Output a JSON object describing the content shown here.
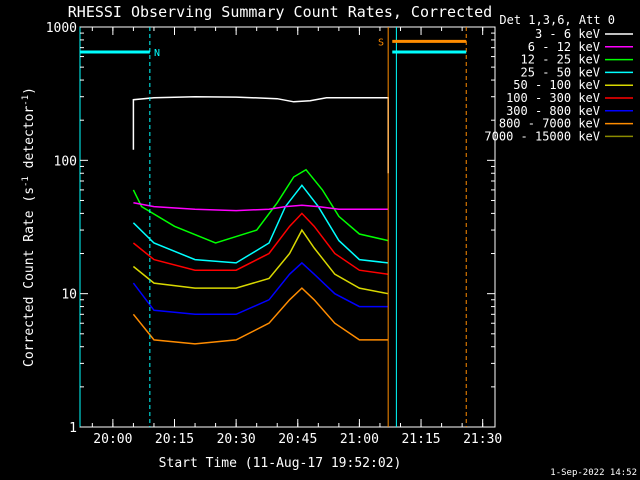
{
  "chart_data": {
    "type": "line",
    "title": "RHESSI Observing Summary Count Rates, Corrected",
    "xlabel": "Start Time (11-Aug-17 19:52:02)",
    "ylabel": "Corrected Count Rate (s⁻¹ detector⁻¹)",
    "ylabel_parts": {
      "main": "Corrected Count Rate (s",
      "exp1": "-1",
      "mid": " detector",
      "exp2": "-1",
      "end": ")"
    },
    "yscale": "log",
    "xlim": [
      "19:52",
      "21:33"
    ],
    "ylim": [
      1,
      1000
    ],
    "x_ticks": [
      "20:00",
      "20:15",
      "20:30",
      "20:45",
      "21:00",
      "21:15",
      "21:30"
    ],
    "y_ticks": [
      "1",
      "10",
      "100",
      "1000"
    ],
    "footer": "1-Sep-2022 14:52",
    "legend": {
      "placement": "right",
      "header": "Det 1,3,6, Att 0",
      "entries": [
        {
          "label": "3 - 6 keV",
          "color": "#ffffff"
        },
        {
          "label": "6 - 12 keV",
          "color": "#ff00ff"
        },
        {
          "label": "12 - 25 keV",
          "color": "#00ff00"
        },
        {
          "label": "25 - 50 keV",
          "color": "#00ffff"
        },
        {
          "label": "50 - 100 keV",
          "color": "#d8d800"
        },
        {
          "label": "100 - 300 keV",
          "color": "#ff0000"
        },
        {
          "label": "300 - 800 keV",
          "color": "#0000ff"
        },
        {
          "label": "800 - 7000 keV",
          "color": "#ff8c00"
        },
        {
          "label": "7000 - 15000 keV",
          "color": "#8b8b00"
        }
      ]
    },
    "series": [
      {
        "name": "3 - 6 keV",
        "color": "#ffffff",
        "x": [
          "20:05",
          "20:05",
          "20:10",
          "20:20",
          "20:30",
          "20:40",
          "20:44",
          "20:48",
          "20:52",
          "21:00",
          "21:07",
          "21:07"
        ],
        "y": [
          120,
          285,
          295,
          300,
          298,
          290,
          275,
          280,
          295,
          295,
          295,
          80
        ]
      },
      {
        "name": "6 - 12 keV",
        "color": "#ff00ff",
        "x": [
          "20:05",
          "20:10",
          "20:20",
          "20:30",
          "20:38",
          "20:42",
          "20:46",
          "20:50",
          "20:55",
          "21:00",
          "21:07"
        ],
        "y": [
          48,
          45,
          43,
          42,
          43,
          45,
          46,
          45,
          43,
          43,
          43
        ]
      },
      {
        "name": "12 - 25 keV",
        "color": "#00ff00",
        "x": [
          "20:05",
          "20:07",
          "20:15",
          "20:25",
          "20:35",
          "20:40",
          "20:44",
          "20:47",
          "20:51",
          "20:55",
          "21:00",
          "21:07"
        ],
        "y": [
          60,
          45,
          32,
          24,
          30,
          48,
          75,
          85,
          60,
          38,
          28,
          25
        ]
      },
      {
        "name": "25 - 50 keV",
        "color": "#00ffff",
        "x": [
          "20:05",
          "20:10",
          "20:20",
          "20:30",
          "20:38",
          "20:42",
          "20:46",
          "20:50",
          "20:55",
          "21:00",
          "21:07"
        ],
        "y": [
          34,
          24,
          18,
          17,
          24,
          45,
          65,
          45,
          25,
          18,
          17
        ]
      },
      {
        "name": "50 - 100 keV",
        "color": "#d8d800",
        "x": [
          "20:05",
          "20:10",
          "20:20",
          "20:30",
          "20:38",
          "20:43",
          "20:46",
          "20:49",
          "20:54",
          "21:00",
          "21:07"
        ],
        "y": [
          16,
          12,
          11,
          11,
          13,
          20,
          30,
          22,
          14,
          11,
          10
        ]
      },
      {
        "name": "100 - 300 keV",
        "color": "#ff0000",
        "x": [
          "20:05",
          "20:10",
          "20:20",
          "20:30",
          "20:38",
          "20:43",
          "20:46",
          "20:49",
          "20:54",
          "21:00",
          "21:07"
        ],
        "y": [
          24,
          18,
          15,
          15,
          20,
          32,
          40,
          32,
          20,
          15,
          14
        ]
      },
      {
        "name": "300 - 800 keV",
        "color": "#0000ff",
        "x": [
          "20:05",
          "20:10",
          "20:20",
          "20:30",
          "20:38",
          "20:43",
          "20:46",
          "20:49",
          "20:54",
          "21:00",
          "21:07"
        ],
        "y": [
          12,
          7.5,
          7,
          7,
          9,
          14,
          17,
          14,
          10,
          8,
          8
        ]
      },
      {
        "name": "800 - 7000 keV",
        "color": "#ff8c00",
        "x": [
          "20:05",
          "20:10",
          "20:20",
          "20:30",
          "20:38",
          "20:43",
          "20:46",
          "20:49",
          "20:54",
          "21:00",
          "21:07"
        ],
        "y": [
          7,
          4.5,
          4.2,
          4.5,
          6,
          9,
          11,
          9,
          6,
          4.5,
          4.5
        ]
      }
    ],
    "state_bars": [
      {
        "label": "N",
        "color": "#00ffff",
        "x_start": "19:52",
        "x_end": "20:09",
        "y": 650,
        "label_x": "20:10"
      },
      {
        "label": "S",
        "color": "#ff8c00",
        "x_start": "21:08",
        "x_end": "21:26",
        "y": 780,
        "label_x": "21:06"
      },
      {
        "color": "#00ffff",
        "x_start": "21:08",
        "x_end": "21:26",
        "y": 650
      }
    ],
    "event_lines": [
      {
        "x": "19:52",
        "color": "#00ffff",
        "style": "solid"
      },
      {
        "x": "20:09",
        "color": "#00ffff",
        "style": "dashed"
      },
      {
        "x": "21:07",
        "color": "#ff8c00",
        "style": "solid"
      },
      {
        "x": "21:09",
        "color": "#00ffff",
        "style": "solid"
      },
      {
        "x": "21:26",
        "color": "#ff8c00",
        "style": "dashed"
      }
    ]
  }
}
